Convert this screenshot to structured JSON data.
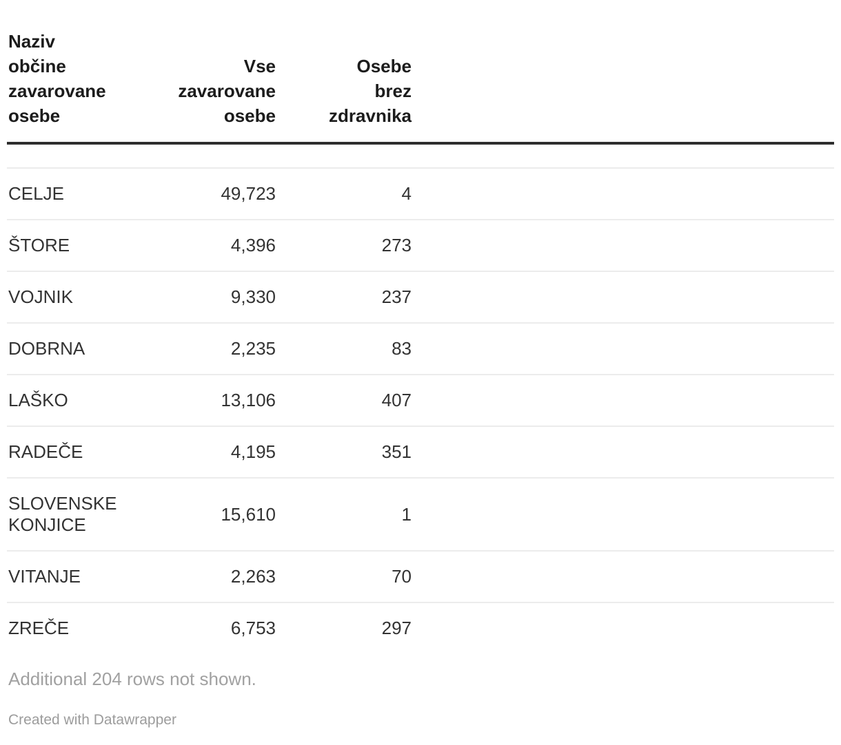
{
  "chart_data": {
    "type": "table",
    "title": "",
    "columns": [
      "Naziv občine zavarovane osebe",
      "Vse zavarovane osebe",
      "Osebe brez zdravnika"
    ],
    "rows": [
      [
        "CELJE",
        49723,
        4
      ],
      [
        "ŠTORE",
        4396,
        273
      ],
      [
        "VOJNIK",
        9330,
        237
      ],
      [
        "DOBRNA",
        2235,
        83
      ],
      [
        "LAŠKO",
        13106,
        407
      ],
      [
        "RADEČE",
        4195,
        351
      ],
      [
        "SLOVENSKE KONJICE",
        15610,
        1
      ],
      [
        "VITANJE",
        2263,
        70
      ],
      [
        "ZREČE",
        6753,
        297
      ]
    ],
    "note": "Additional 204 rows not shown."
  },
  "table": {
    "columns": [
      {
        "label": "Naziv\nobčine\nzavarovane\nosebe"
      },
      {
        "label": "Vse\nzavarovane\nosebe"
      },
      {
        "label": "Osebe\nbrez\nzdravnika"
      }
    ],
    "rows": [
      {
        "name": "CELJE",
        "vse": "49,723",
        "brez": "4"
      },
      {
        "name": "ŠTORE",
        "vse": "4,396",
        "brez": "273"
      },
      {
        "name": "VOJNIK",
        "vse": "9,330",
        "brez": "237"
      },
      {
        "name": "DOBRNA",
        "vse": "2,235",
        "brez": "83"
      },
      {
        "name": "LAŠKO",
        "vse": "13,106",
        "brez": "407"
      },
      {
        "name": "RADEČE",
        "vse": "4,195",
        "brez": "351"
      },
      {
        "name": "SLOVENSKE KONJICE",
        "vse": "15,610",
        "brez": "1"
      },
      {
        "name": "VITANJE",
        "vse": "2,263",
        "brez": "70"
      },
      {
        "name": "ZREČE",
        "vse": "6,753",
        "brez": "297"
      }
    ],
    "note": "Additional 204 rows not shown.",
    "attribution": "Created with Datawrapper"
  },
  "colors": {
    "header_text": "#1c1c1c",
    "body_text": "#333333",
    "header_rule": "#2e2e2e",
    "row_rule": "#ececec",
    "note_text": "#a1a1a1",
    "attribution_text": "#9c9c9c"
  }
}
